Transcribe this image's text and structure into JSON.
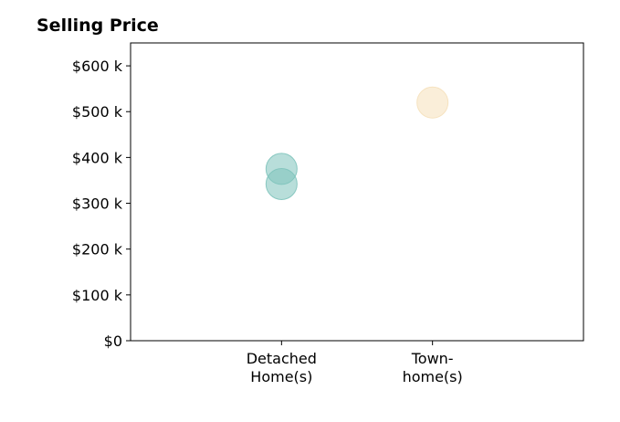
{
  "chart_data": {
    "type": "scatter",
    "title": "Selling Price",
    "xlabel": "",
    "ylabel": "",
    "categories": [
      [
        "Detached",
        "Home(s)"
      ],
      [
        "Town-",
        "home(s)"
      ]
    ],
    "xlim": [
      -1,
      2
    ],
    "ylim": [
      0,
      650000
    ],
    "yticks": [
      {
        "value": 0,
        "label": "$0"
      },
      {
        "value": 100000,
        "label": "$100 k"
      },
      {
        "value": 200000,
        "label": "$200 k"
      },
      {
        "value": 300000,
        "label": "$300 k"
      },
      {
        "value": 400000,
        "label": "$400 k"
      },
      {
        "value": 500000,
        "label": "$500 k"
      },
      {
        "value": 600000,
        "label": "$600 k"
      }
    ],
    "grid": false,
    "series": [
      {
        "color": "#7ec3bb",
        "points": [
          {
            "x": 0,
            "y": 375000
          },
          {
            "x": 0,
            "y": 342000
          }
        ]
      },
      {
        "color": "#f5e0ba",
        "points": [
          {
            "x": 1,
            "y": 520000
          }
        ]
      }
    ]
  }
}
